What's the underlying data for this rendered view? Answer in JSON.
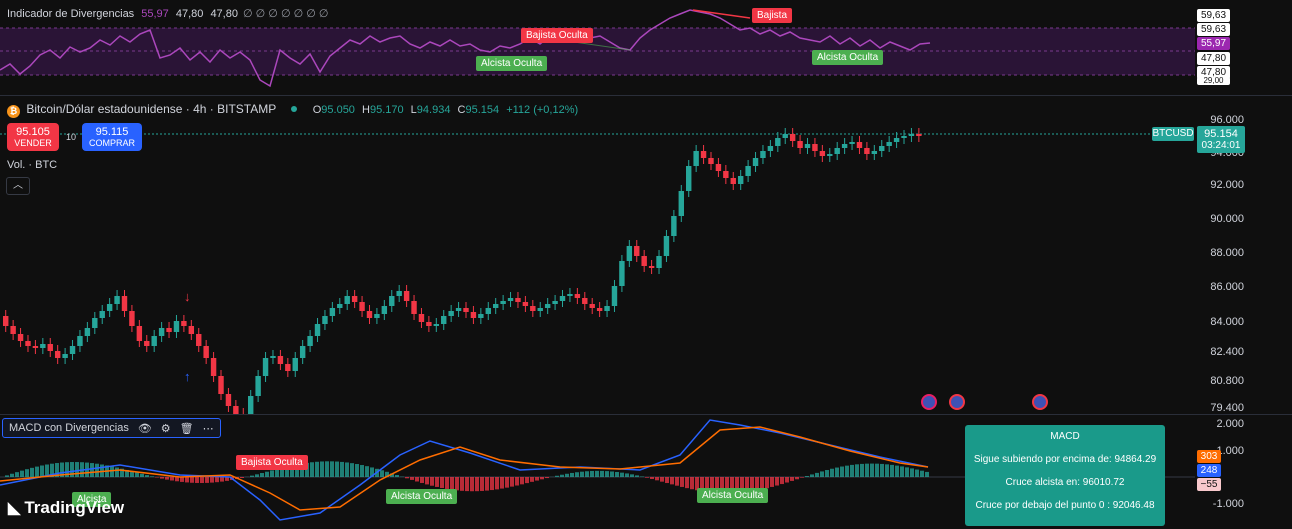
{
  "indicator_top": {
    "title": "Indicador de Divergencias",
    "v1": "55,97",
    "v2": "47,80",
    "v3": "47,80",
    "empty_marks": "∅  ∅  ∅  ∅  ∅  ∅  ∅",
    "scale": [
      "59,63",
      "59,63",
      "55,97",
      "47,80",
      "47,80",
      "29,00"
    ],
    "tags": [
      "Bajista",
      "Bajista Oculta",
      "Alcista Oculta",
      "Alcista Oculta"
    ]
  },
  "symbol": {
    "name": "Bitcoin/Dólar estadounidense · 4h · BITSTAMP",
    "o_label": "O",
    "o": "95.050",
    "h_label": "H",
    "h": "95.170",
    "l_label": "L",
    "l": "94.934",
    "c_label": "C",
    "c": "95.154",
    "change": "+112 (+0,12%)"
  },
  "trade": {
    "sell_price": "95.105",
    "sell_label": "VENDER",
    "spread": "10",
    "buy_price": "95.115",
    "buy_label": "COMPRAR"
  },
  "volume_label": "Vol. · BTC",
  "price_axis": [
    "96.000",
    "94.000",
    "92.000",
    "90.000",
    "88.000",
    "86.000",
    "84.000",
    "82.400",
    "80.800",
    "79.400"
  ],
  "ticker": {
    "symbol": "BTCUSD",
    "price": "95.154",
    "countdown": "03:24:01"
  },
  "macd": {
    "title": "MACD con Divergencias",
    "axis": [
      "2.000",
      "1.000",
      "-1.000"
    ],
    "badges": [
      "303",
      "248",
      "−55"
    ],
    "tags": [
      "Bajista Oculta",
      "Alcista",
      "Alcista Oculta",
      "Alcista Oculta"
    ],
    "box_title": "MACD",
    "box_lines": [
      "Sigue subiendo por encima de: 94864.29",
      "Cruce alcista en: 96010.72",
      "Cruce por debajo del punto 0 : 92046.48"
    ]
  },
  "logo_text": "TradingView",
  "colors": {
    "up": "#26a69a",
    "down": "#f23645",
    "purple": "#9c27b0",
    "blue": "#2962ff",
    "orange": "#ff6d00"
  }
}
